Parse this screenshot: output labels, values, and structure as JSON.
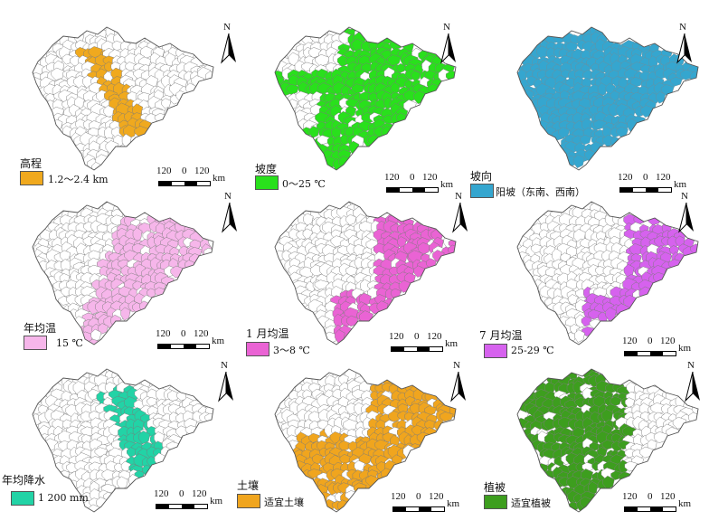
{
  "north_label": "N",
  "scale": {
    "left": "120",
    "zero": "0",
    "right": "120",
    "unit": "km"
  },
  "panels": [
    {
      "id": "elevation",
      "title": "高程",
      "value": "1.2～2.4 km",
      "color": "#f0a91e",
      "pattern": "west-arc"
    },
    {
      "id": "slope",
      "title": "坡度",
      "value": "0～25 ℃",
      "color": "#29e01c",
      "pattern": "most"
    },
    {
      "id": "aspect",
      "title": "坡向",
      "value": "阳坡（东南、西南）",
      "color": "#35a6cf",
      "pattern": "all"
    },
    {
      "id": "annual-temp",
      "title": "年均温",
      "value": "15 ℃",
      "color": "#f6b6ea",
      "pattern": "center-east"
    },
    {
      "id": "jan-temp",
      "title": "1 月均温",
      "value": "3～8 ℃",
      "color": "#ea63d4",
      "pattern": "east"
    },
    {
      "id": "jul-temp",
      "title": "7 月均温",
      "value": "25-29 ℃",
      "color": "#d662ee",
      "pattern": "east-narrow"
    },
    {
      "id": "precip",
      "title": "年均降水",
      "value": "1 200 mm",
      "color": "#22d3a6",
      "pattern": "arc-east"
    },
    {
      "id": "soil",
      "title": "土壤",
      "value": "适宜土壤",
      "color": "#f0a51e",
      "pattern": "broad"
    },
    {
      "id": "vegetation",
      "title": "植被",
      "value": "适宜植被",
      "color": "#3d9e1e",
      "pattern": "west-veg"
    }
  ]
}
